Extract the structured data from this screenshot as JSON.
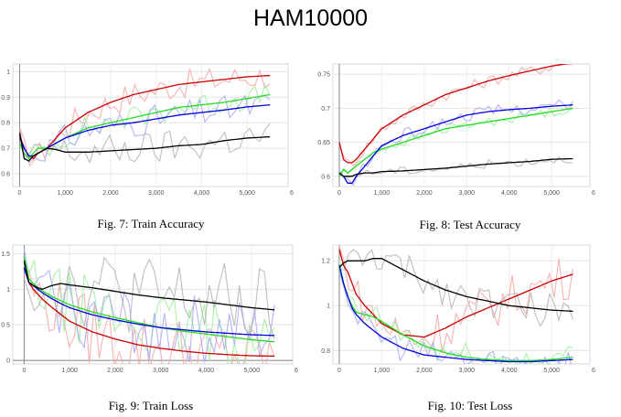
{
  "page_title": "HAM10000",
  "chart_data": [
    {
      "type": "line",
      "caption": "Fig. 7: Train Accuracy",
      "x_ticks": [
        "0",
        "1,000",
        "2,000",
        "3,000",
        "4,000",
        "5,000",
        "6"
      ],
      "y_ticks": [
        "0.6",
        "0.7",
        "0.8",
        "0.9",
        "1"
      ],
      "xlim": [
        -150,
        5900
      ],
      "ylim": [
        0.55,
        1.03
      ],
      "grid": true,
      "series": [
        {
          "color": "#cc0000",
          "noise": 0.12,
          "x": [
            0,
            100,
            200,
            300,
            400,
            600,
            800,
            1000,
            1500,
            2000,
            2500,
            3000,
            3500,
            4000,
            4500,
            5000,
            5500
          ],
          "y": [
            0.75,
            0.7,
            0.67,
            0.66,
            0.68,
            0.7,
            0.74,
            0.78,
            0.84,
            0.88,
            0.91,
            0.93,
            0.95,
            0.96,
            0.97,
            0.98,
            0.985
          ]
        },
        {
          "color": "#22dd22",
          "noise": 0.1,
          "x": [
            0,
            100,
            200,
            300,
            400,
            600,
            800,
            1000,
            1500,
            2000,
            2500,
            3000,
            3500,
            4000,
            4500,
            5000,
            5500
          ],
          "y": [
            0.72,
            0.68,
            0.66,
            0.68,
            0.7,
            0.7,
            0.72,
            0.74,
            0.78,
            0.8,
            0.82,
            0.84,
            0.86,
            0.87,
            0.88,
            0.895,
            0.91
          ]
        },
        {
          "color": "#0000dd",
          "noise": 0.12,
          "x": [
            0,
            100,
            200,
            300,
            400,
            600,
            800,
            1000,
            1500,
            2000,
            2500,
            3000,
            3500,
            4000,
            4500,
            5000,
            5500
          ],
          "y": [
            0.74,
            0.7,
            0.67,
            0.67,
            0.68,
            0.7,
            0.72,
            0.74,
            0.77,
            0.79,
            0.8,
            0.815,
            0.83,
            0.84,
            0.85,
            0.862,
            0.87
          ]
        },
        {
          "color": "#000000",
          "noise": 0.14,
          "x": [
            0,
            100,
            200,
            300,
            400,
            600,
            800,
            1000,
            1500,
            2000,
            2500,
            3000,
            3500,
            4000,
            4500,
            5000,
            5500
          ],
          "y": [
            0.76,
            0.66,
            0.65,
            0.67,
            0.68,
            0.7,
            0.695,
            0.685,
            0.685,
            0.69,
            0.695,
            0.7,
            0.71,
            0.715,
            0.73,
            0.74,
            0.745
          ]
        }
      ]
    },
    {
      "type": "line",
      "caption": "Fig. 8: Test Accuracy",
      "x_ticks": [
        "0",
        "1,000",
        "2,000",
        "3,000",
        "4,000",
        "5,000",
        "6"
      ],
      "y_ticks": [
        "0.6",
        "0.65",
        "0.7",
        "0.75"
      ],
      "xlim": [
        -150,
        5900
      ],
      "ylim": [
        0.585,
        0.765
      ],
      "grid": true,
      "series": [
        {
          "color": "#cc0000",
          "noise": 0.05,
          "x": [
            0,
            100,
            200,
            300,
            400,
            600,
            800,
            1000,
            1500,
            2000,
            2500,
            3000,
            3500,
            4000,
            4500,
            5000,
            5500
          ],
          "y": [
            0.65,
            0.625,
            0.62,
            0.62,
            0.625,
            0.64,
            0.655,
            0.67,
            0.69,
            0.705,
            0.72,
            0.73,
            0.74,
            0.748,
            0.755,
            0.762,
            0.767
          ]
        },
        {
          "color": "#22dd22",
          "noise": 0.04,
          "x": [
            0,
            100,
            200,
            300,
            400,
            600,
            800,
            1000,
            1500,
            2000,
            2500,
            3000,
            3500,
            4000,
            4500,
            5000,
            5500
          ],
          "y": [
            0.6,
            0.61,
            0.605,
            0.61,
            0.615,
            0.625,
            0.635,
            0.64,
            0.65,
            0.66,
            0.67,
            0.675,
            0.68,
            0.685,
            0.69,
            0.695,
            0.7
          ]
        },
        {
          "color": "#0000dd",
          "noise": 0.05,
          "x": [
            0,
            100,
            200,
            300,
            400,
            600,
            800,
            1000,
            1500,
            2000,
            2500,
            3000,
            3500,
            4000,
            4500,
            5000,
            5500
          ],
          "y": [
            0.605,
            0.6,
            0.59,
            0.59,
            0.6,
            0.615,
            0.63,
            0.645,
            0.66,
            0.67,
            0.68,
            0.69,
            0.695,
            0.698,
            0.7,
            0.703,
            0.705
          ]
        },
        {
          "color": "#000000",
          "noise": 0.035,
          "x": [
            0,
            100,
            200,
            300,
            400,
            600,
            800,
            1000,
            1500,
            2000,
            2500,
            3000,
            3500,
            4000,
            4500,
            5000,
            5500
          ],
          "y": [
            0.605,
            0.6,
            0.6,
            0.6,
            0.603,
            0.605,
            0.605,
            0.607,
            0.608,
            0.61,
            0.612,
            0.615,
            0.618,
            0.62,
            0.622,
            0.625,
            0.626
          ]
        }
      ]
    },
    {
      "type": "line",
      "caption": "Fig. 9: Train Loss",
      "x_ticks": [
        "0",
        "1,000",
        "2,000",
        "3,000",
        "4,000",
        "5,000",
        "6"
      ],
      "y_ticks": [
        "0",
        "0.5",
        "1",
        "1.5"
      ],
      "xlim": [
        -250,
        5900
      ],
      "ylim": [
        -0.05,
        1.62
      ],
      "grid": true,
      "series": [
        {
          "color": "#cc0000",
          "noise": 0.3,
          "x": [
            0,
            100,
            200,
            300,
            400,
            600,
            800,
            1000,
            1500,
            2000,
            2500,
            3000,
            3500,
            4000,
            4500,
            5000,
            5500
          ],
          "y": [
            1.3,
            1.1,
            1.0,
            0.93,
            0.86,
            0.75,
            0.65,
            0.55,
            0.4,
            0.3,
            0.22,
            0.17,
            0.13,
            0.1,
            0.08,
            0.065,
            0.06
          ]
        },
        {
          "color": "#22dd22",
          "noise": 0.3,
          "x": [
            0,
            100,
            200,
            300,
            400,
            600,
            800,
            1000,
            1500,
            2000,
            2500,
            3000,
            3500,
            4000,
            4500,
            5000,
            5500
          ],
          "y": [
            1.45,
            1.15,
            1.08,
            1.02,
            0.98,
            0.9,
            0.84,
            0.78,
            0.68,
            0.6,
            0.53,
            0.46,
            0.41,
            0.37,
            0.33,
            0.29,
            0.26
          ]
        },
        {
          "color": "#0000dd",
          "noise": 0.3,
          "x": [
            0,
            100,
            200,
            300,
            400,
            600,
            800,
            1000,
            1500,
            2000,
            2500,
            3000,
            3500,
            4000,
            4500,
            5000,
            5500
          ],
          "y": [
            1.3,
            1.1,
            1.05,
            1.0,
            0.95,
            0.87,
            0.8,
            0.74,
            0.64,
            0.57,
            0.51,
            0.46,
            0.43,
            0.4,
            0.38,
            0.36,
            0.35
          ]
        },
        {
          "color": "#000000",
          "noise": 0.35,
          "x": [
            0,
            100,
            200,
            300,
            400,
            600,
            800,
            1000,
            1500,
            2000,
            2500,
            3000,
            3500,
            4000,
            4500,
            5000,
            5500
          ],
          "y": [
            1.4,
            1.1,
            1.05,
            1.02,
            1.0,
            1.05,
            1.08,
            1.06,
            1.02,
            0.97,
            0.92,
            0.88,
            0.85,
            0.82,
            0.78,
            0.74,
            0.71
          ]
        }
      ]
    },
    {
      "type": "line",
      "caption": "Fig. 10: Test Loss",
      "x_ticks": [
        "0",
        "1,000",
        "2,000",
        "3,000",
        "4,000",
        "5,000",
        "6"
      ],
      "y_ticks": [
        "0.8",
        "1",
        "1.2"
      ],
      "xlim": [
        -150,
        5900
      ],
      "ylim": [
        0.74,
        1.27
      ],
      "grid": true,
      "series": [
        {
          "color": "#cc0000",
          "noise": 0.2,
          "x": [
            0,
            100,
            200,
            300,
            400,
            600,
            800,
            1000,
            1500,
            2000,
            2500,
            3000,
            3500,
            4000,
            4500,
            5000,
            5500
          ],
          "y": [
            1.25,
            1.18,
            1.15,
            1.1,
            1.05,
            1.0,
            0.96,
            0.92,
            0.87,
            0.86,
            0.9,
            0.95,
            0.99,
            1.03,
            1.07,
            1.11,
            1.14
          ]
        },
        {
          "color": "#22dd22",
          "noise": 0.12,
          "x": [
            0,
            100,
            200,
            300,
            400,
            600,
            800,
            1000,
            1500,
            2000,
            2500,
            3000,
            3500,
            4000,
            4500,
            5000,
            5500
          ],
          "y": [
            1.17,
            1.1,
            1.04,
            1.0,
            0.97,
            0.96,
            0.95,
            0.93,
            0.87,
            0.82,
            0.79,
            0.77,
            0.76,
            0.755,
            0.755,
            0.76,
            0.77
          ]
        },
        {
          "color": "#0000dd",
          "noise": 0.12,
          "x": [
            0,
            100,
            200,
            300,
            400,
            600,
            800,
            1000,
            1500,
            2000,
            2500,
            3000,
            3500,
            4000,
            4500,
            5000,
            5500
          ],
          "y": [
            1.18,
            1.1,
            1.04,
            0.99,
            0.96,
            0.92,
            0.89,
            0.86,
            0.81,
            0.78,
            0.77,
            0.76,
            0.755,
            0.75,
            0.75,
            0.755,
            0.76
          ]
        },
        {
          "color": "#000000",
          "noise": 0.15,
          "x": [
            0,
            100,
            200,
            300,
            400,
            600,
            800,
            1000,
            1500,
            2000,
            2500,
            3000,
            3500,
            4000,
            4500,
            5000,
            5500
          ],
          "y": [
            1.17,
            1.19,
            1.2,
            1.2,
            1.2,
            1.2,
            1.21,
            1.21,
            1.16,
            1.11,
            1.07,
            1.04,
            1.02,
            1.0,
            0.99,
            0.98,
            0.975
          ]
        }
      ]
    }
  ]
}
